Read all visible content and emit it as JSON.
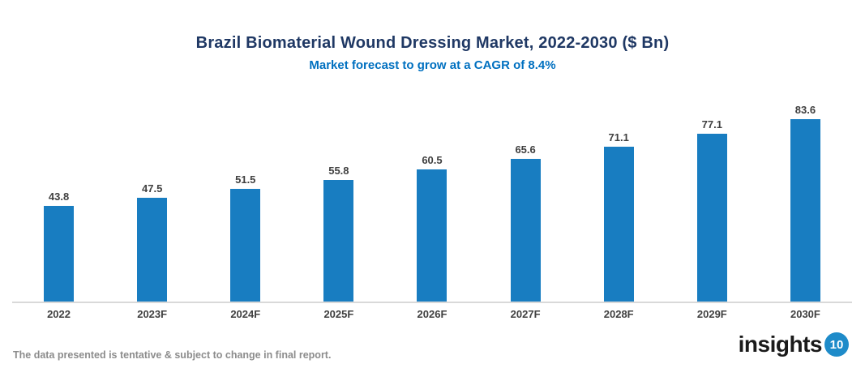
{
  "header": {
    "title": "Brazil Biomaterial Wound Dressing Market, 2022-2030 ($ Bn)",
    "subtitle": "Market forecast to grow at a CAGR of 8.4%"
  },
  "chart_data": {
    "type": "bar",
    "categories": [
      "2022",
      "2023F",
      "2024F",
      "2025F",
      "2026F",
      "2027F",
      "2028F",
      "2029F",
      "2030F"
    ],
    "values": [
      43.8,
      47.5,
      51.5,
      55.8,
      60.5,
      65.6,
      71.1,
      77.1,
      83.6
    ],
    "title": "Brazil Biomaterial Wound Dressing Market, 2022-2030 ($ Bn)",
    "subtitle": "Market forecast to grow at a CAGR of 8.4%",
    "xlabel": "",
    "ylabel": "",
    "ylim": [
      0,
      90
    ],
    "grid": false,
    "legend": "none",
    "value_labels": "above bars",
    "bar_color": "#187DC1",
    "value_label_color": "#404040",
    "axis_line_color": "#D9D9D9",
    "title_color": "#1F3864",
    "subtitle_color": "#0070C0"
  },
  "footer": {
    "disclaimer": "The data presented is tentative & subject to change in final report.",
    "logo": {
      "text": "insights",
      "badge": "10",
      "badge_color": "#1E8BC9"
    }
  }
}
